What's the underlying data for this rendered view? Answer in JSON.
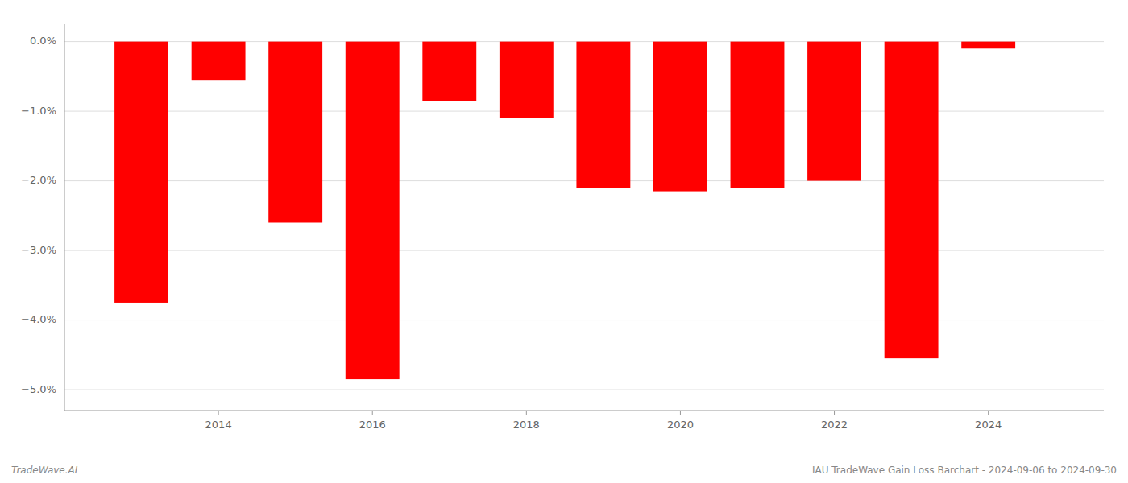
{
  "chart_data": {
    "type": "bar",
    "x": [
      2013,
      2014,
      2015,
      2016,
      2017,
      2018,
      2019,
      2020,
      2021,
      2022,
      2023,
      2024
    ],
    "values": [
      -3.75,
      -0.55,
      -2.6,
      -4.85,
      -0.85,
      -1.1,
      -2.1,
      -2.15,
      -2.1,
      -2.0,
      -4.55,
      -0.1
    ],
    "color": "#ff0000",
    "xlim": [
      2012.0,
      2025.5
    ],
    "xticks": [
      2014,
      2016,
      2018,
      2020,
      2022,
      2024
    ],
    "ylim": [
      -5.3,
      0.25
    ],
    "yticks": [
      {
        "value": 0.0,
        "label": "0.0%"
      },
      {
        "value": -1.0,
        "label": "−1.0%"
      },
      {
        "value": -2.0,
        "label": "−2.0%"
      },
      {
        "value": -3.0,
        "label": "−3.0%"
      },
      {
        "value": -4.0,
        "label": "−4.0%"
      },
      {
        "value": -5.0,
        "label": "−5.0%"
      }
    ],
    "grid": true,
    "annotations": [
      "TradeWave.AI",
      "IAU TradeWave Gain Loss Barchart - 2024-09-06 to 2024-09-30"
    ]
  }
}
